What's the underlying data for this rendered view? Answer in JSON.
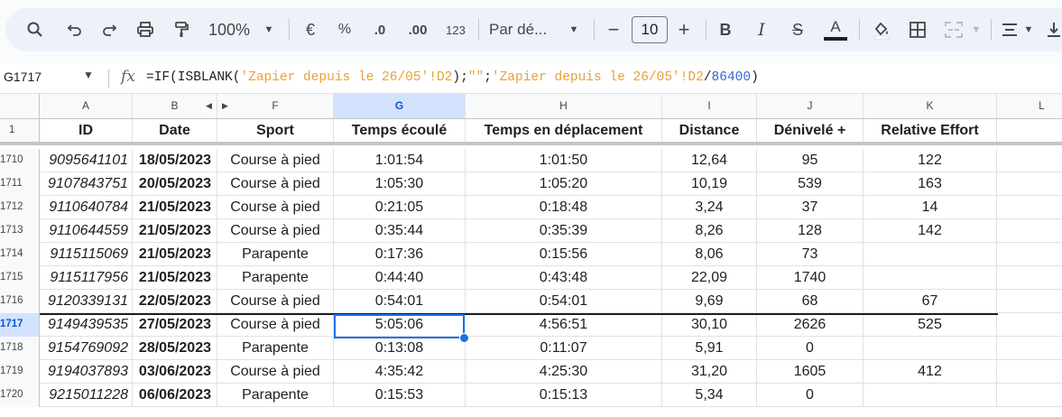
{
  "toolbar": {
    "zoom": "100%",
    "currency": "€",
    "percent": "%",
    "dec_decrease": ".0",
    "dec_increase": ".00",
    "number_format": "123",
    "font_name": "Par dé...",
    "font_size": "10",
    "minus": "−",
    "plus": "+",
    "bold": "B",
    "italic": "I",
    "strike": "S",
    "text_color": "A"
  },
  "formula_bar": {
    "cell_ref": "G1717",
    "fx": "fx",
    "formula_parts": [
      {
        "t": "=IF(ISBLANK(",
        "k": "plain"
      },
      {
        "t": "'Zapier depuis le 26/05'!D2",
        "k": "str"
      },
      {
        "t": ");",
        "k": "plain"
      },
      {
        "t": "\"\"",
        "k": "str"
      },
      {
        "t": ";",
        "k": "plain"
      },
      {
        "t": "'Zapier depuis le 26/05'!D2",
        "k": "str"
      },
      {
        "t": "/",
        "k": "plain"
      },
      {
        "t": "86400",
        "k": "num"
      },
      {
        "t": ")",
        "k": "plain"
      }
    ]
  },
  "columns": [
    "A",
    "B",
    "F",
    "G",
    "H",
    "I",
    "J",
    "K",
    "L"
  ],
  "header_row": {
    "num": "1",
    "cells": [
      "ID",
      "Date",
      "Sport",
      "Temps écoulé",
      "Temps en déplacement",
      "Distance",
      "Dénivelé +",
      "Relative Effort"
    ]
  },
  "rows": [
    {
      "num": "1710",
      "cells": [
        "9095641101",
        "18/05/2023",
        "Course à pied",
        "1:01:54",
        "1:01:50",
        "12,64",
        "95",
        "122"
      ]
    },
    {
      "num": "1711",
      "cells": [
        "9107843751",
        "20/05/2023",
        "Course à pied",
        "1:05:30",
        "1:05:20",
        "10,19",
        "539",
        "163"
      ]
    },
    {
      "num": "1712",
      "cells": [
        "9110640784",
        "21/05/2023",
        "Course à pied",
        "0:21:05",
        "0:18:48",
        "3,24",
        "37",
        "14"
      ]
    },
    {
      "num": "1713",
      "cells": [
        "9110644559",
        "21/05/2023",
        "Course à pied",
        "0:35:44",
        "0:35:39",
        "8,26",
        "128",
        "142"
      ]
    },
    {
      "num": "1714",
      "cells": [
        "9115115069",
        "21/05/2023",
        "Parapente",
        "0:17:36",
        "0:15:56",
        "8,06",
        "73",
        ""
      ]
    },
    {
      "num": "1715",
      "cells": [
        "9115117956",
        "21/05/2023",
        "Parapente",
        "0:44:40",
        "0:43:48",
        "22,09",
        "1740",
        ""
      ]
    },
    {
      "num": "1716",
      "cells": [
        "9120339131",
        "22/05/2023",
        "Course à pied",
        "0:54:01",
        "0:54:01",
        "9,69",
        "68",
        "67"
      ]
    },
    {
      "num": "1717",
      "cells": [
        "9149439535",
        "27/05/2023",
        "Course à pied",
        "5:05:06",
        "4:56:51",
        "30,10",
        "2626",
        "525"
      ]
    },
    {
      "num": "1718",
      "cells": [
        "9154769092",
        "28/05/2023",
        "Parapente",
        "0:13:08",
        "0:11:07",
        "5,91",
        "0",
        ""
      ]
    },
    {
      "num": "1719",
      "cells": [
        "9194037893",
        "03/06/2023",
        "Course à pied",
        "4:35:42",
        "4:25:30",
        "31,20",
        "1605",
        "412"
      ]
    },
    {
      "num": "1720",
      "cells": [
        "9215011228",
        "06/06/2023",
        "Parapente",
        "0:15:53",
        "0:15:13",
        "5,34",
        "0",
        ""
      ]
    }
  ],
  "selected": {
    "row": "1717",
    "col": "G"
  },
  "colors": {
    "selection": "#1a73e8",
    "header_selected_bg": "#d3e3fd",
    "formula_string": "#e8a03a",
    "formula_number": "#3367d6"
  }
}
